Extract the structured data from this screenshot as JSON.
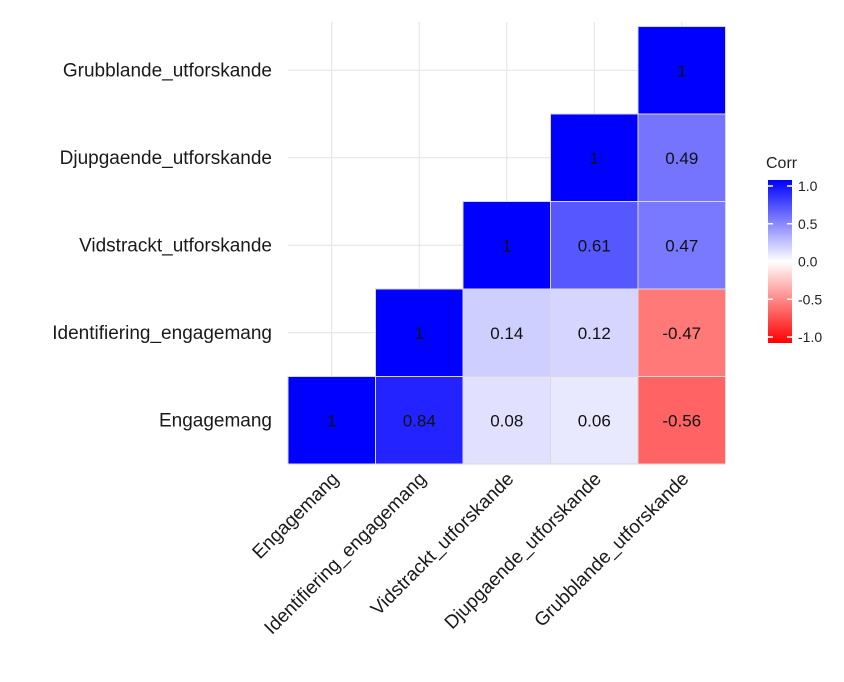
{
  "chart_data": {
    "type": "heatmap",
    "subtype": "lower-triangle correlation matrix",
    "variables": [
      "Engagemang",
      "Identifiering_engagemang",
      "Vidstrackt_utforskande",
      "Djupgaende_utforskande",
      "Grubblande_utforskande"
    ],
    "cells": [
      {
        "row": "Engagemang",
        "col": "Engagemang",
        "value": 1,
        "label": "1"
      },
      {
        "row": "Engagemang",
        "col": "Identifiering_engagemang",
        "value": 0.84,
        "label": "0.84"
      },
      {
        "row": "Engagemang",
        "col": "Vidstrackt_utforskande",
        "value": 0.08,
        "label": "0.08"
      },
      {
        "row": "Engagemang",
        "col": "Djupgaende_utforskande",
        "value": 0.06,
        "label": "0.06"
      },
      {
        "row": "Engagemang",
        "col": "Grubblande_utforskande",
        "value": -0.56,
        "label": "-0.56"
      },
      {
        "row": "Identifiering_engagemang",
        "col": "Identifiering_engagemang",
        "value": 1,
        "label": "1"
      },
      {
        "row": "Identifiering_engagemang",
        "col": "Vidstrackt_utforskande",
        "value": 0.14,
        "label": "0.14"
      },
      {
        "row": "Identifiering_engagemang",
        "col": "Djupgaende_utforskande",
        "value": 0.12,
        "label": "0.12"
      },
      {
        "row": "Identifiering_engagemang",
        "col": "Grubblande_utforskande",
        "value": -0.47,
        "label": "-0.47"
      },
      {
        "row": "Vidstrackt_utforskande",
        "col": "Vidstrackt_utforskande",
        "value": 1,
        "label": "1"
      },
      {
        "row": "Vidstrackt_utforskande",
        "col": "Djupgaende_utforskande",
        "value": 0.61,
        "label": "0.61"
      },
      {
        "row": "Vidstrackt_utforskande",
        "col": "Grubblande_utforskande",
        "value": 0.47,
        "label": "0.47"
      },
      {
        "row": "Djupgaende_utforskande",
        "col": "Djupgaende_utforskande",
        "value": 1,
        "label": "1"
      },
      {
        "row": "Djupgaende_utforskande",
        "col": "Grubblande_utforskande",
        "value": 0.49,
        "label": "0.49"
      },
      {
        "row": "Grubblande_utforskande",
        "col": "Grubblande_utforskande",
        "value": 1,
        "label": "1"
      }
    ],
    "legend": {
      "title": "Corr",
      "position": "right",
      "ticks": [
        "1.0",
        "0.5",
        "0.0",
        "-0.5",
        "-1.0"
      ],
      "range": [
        -1,
        1
      ]
    },
    "colors": {
      "positive": "#0000ff",
      "neutral": "#ffffff",
      "negative": "#ff0000"
    },
    "grid": true
  }
}
